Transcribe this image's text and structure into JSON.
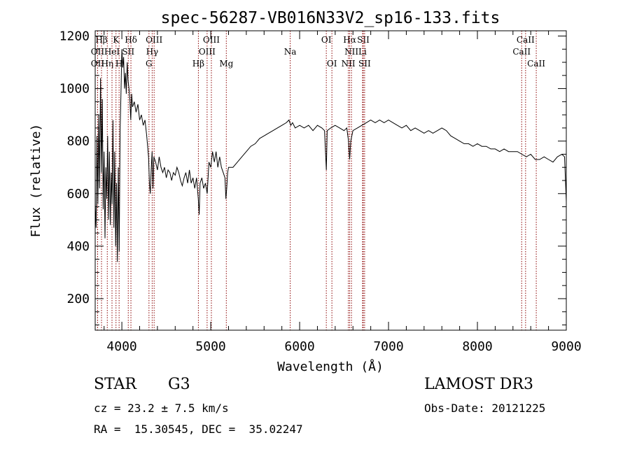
{
  "chart_data": {
    "type": "line",
    "title": "spec-56287-VB016N33V2_sp16-133.fits",
    "xlabel": "Wavelength (Å)",
    "ylabel": "Flux (relative)",
    "xlim": [
      3700,
      9000
    ],
    "ylim": [
      80,
      1220
    ],
    "x_ticks": [
      4000,
      5000,
      6000,
      7000,
      8000,
      9000
    ],
    "y_ticks": [
      200,
      400,
      600,
      800,
      1000,
      1200
    ],
    "grid": false,
    "line_color": "#000000",
    "marker_color": "#8b0000",
    "series": [
      {
        "name": "flux",
        "points": [
          [
            3700,
            560
          ],
          [
            3710,
            470
          ],
          [
            3720,
            820
          ],
          [
            3730,
            560
          ],
          [
            3740,
            900
          ],
          [
            3750,
            620
          ],
          [
            3760,
            1040
          ],
          [
            3770,
            680
          ],
          [
            3780,
            960
          ],
          [
            3790,
            540
          ],
          [
            3800,
            760
          ],
          [
            3810,
            430
          ],
          [
            3820,
            700
          ],
          [
            3830,
            580
          ],
          [
            3840,
            820
          ],
          [
            3850,
            500
          ],
          [
            3860,
            760
          ],
          [
            3870,
            480
          ],
          [
            3880,
            680
          ],
          [
            3890,
            560
          ],
          [
            3900,
            880
          ],
          [
            3910,
            470
          ],
          [
            3920,
            760
          ],
          [
            3930,
            400
          ],
          [
            3940,
            640
          ],
          [
            3950,
            340
          ],
          [
            3960,
            700
          ],
          [
            3970,
            380
          ],
          [
            3980,
            840
          ],
          [
            3990,
            980
          ],
          [
            4000,
            1150
          ],
          [
            4010,
            1080
          ],
          [
            4020,
            1120
          ],
          [
            4030,
            1000
          ],
          [
            4040,
            1060
          ],
          [
            4050,
            980
          ],
          [
            4060,
            1100
          ],
          [
            4070,
            1030
          ],
          [
            4080,
            1000
          ],
          [
            4090,
            960
          ],
          [
            4100,
            880
          ],
          [
            4110,
            980
          ],
          [
            4120,
            930
          ],
          [
            4140,
            950
          ],
          [
            4160,
            910
          ],
          [
            4180,
            940
          ],
          [
            4200,
            880
          ],
          [
            4220,
            900
          ],
          [
            4240,
            860
          ],
          [
            4260,
            880
          ],
          [
            4280,
            820
          ],
          [
            4300,
            740
          ],
          [
            4310,
            640
          ],
          [
            4320,
            600
          ],
          [
            4330,
            690
          ],
          [
            4340,
            760
          ],
          [
            4350,
            620
          ],
          [
            4360,
            740
          ],
          [
            4380,
            720
          ],
          [
            4400,
            690
          ],
          [
            4420,
            740
          ],
          [
            4440,
            700
          ],
          [
            4460,
            680
          ],
          [
            4480,
            700
          ],
          [
            4500,
            660
          ],
          [
            4520,
            690
          ],
          [
            4540,
            680
          ],
          [
            4560,
            650
          ],
          [
            4580,
            680
          ],
          [
            4600,
            670
          ],
          [
            4620,
            700
          ],
          [
            4640,
            680
          ],
          [
            4660,
            650
          ],
          [
            4680,
            630
          ],
          [
            4700,
            660
          ],
          [
            4720,
            680
          ],
          [
            4740,
            640
          ],
          [
            4760,
            690
          ],
          [
            4780,
            640
          ],
          [
            4800,
            660
          ],
          [
            4820,
            620
          ],
          [
            4840,
            660
          ],
          [
            4860,
            580
          ],
          [
            4870,
            520
          ],
          [
            4880,
            640
          ],
          [
            4900,
            660
          ],
          [
            4920,
            620
          ],
          [
            4940,
            640
          ],
          [
            4960,
            600
          ],
          [
            4980,
            720
          ],
          [
            5000,
            700
          ],
          [
            5020,
            760
          ],
          [
            5040,
            720
          ],
          [
            5060,
            760
          ],
          [
            5080,
            700
          ],
          [
            5100,
            740
          ],
          [
            5120,
            700
          ],
          [
            5140,
            680
          ],
          [
            5160,
            660
          ],
          [
            5170,
            580
          ],
          [
            5180,
            620
          ],
          [
            5190,
            680
          ],
          [
            5200,
            700
          ],
          [
            5250,
            700
          ],
          [
            5300,
            720
          ],
          [
            5350,
            740
          ],
          [
            5400,
            760
          ],
          [
            5450,
            780
          ],
          [
            5500,
            790
          ],
          [
            5550,
            810
          ],
          [
            5600,
            820
          ],
          [
            5650,
            830
          ],
          [
            5700,
            840
          ],
          [
            5750,
            850
          ],
          [
            5800,
            860
          ],
          [
            5850,
            870
          ],
          [
            5880,
            880
          ],
          [
            5900,
            860
          ],
          [
            5920,
            870
          ],
          [
            5950,
            850
          ],
          [
            6000,
            860
          ],
          [
            6050,
            850
          ],
          [
            6100,
            860
          ],
          [
            6150,
            840
          ],
          [
            6200,
            860
          ],
          [
            6250,
            850
          ],
          [
            6280,
            840
          ],
          [
            6300,
            690
          ],
          [
            6310,
            840
          ],
          [
            6350,
            850
          ],
          [
            6400,
            860
          ],
          [
            6450,
            850
          ],
          [
            6500,
            840
          ],
          [
            6530,
            850
          ],
          [
            6550,
            800
          ],
          [
            6563,
            730
          ],
          [
            6575,
            800
          ],
          [
            6600,
            840
          ],
          [
            6650,
            850
          ],
          [
            6700,
            860
          ],
          [
            6750,
            870
          ],
          [
            6800,
            880
          ],
          [
            6850,
            870
          ],
          [
            6900,
            880
          ],
          [
            6950,
            870
          ],
          [
            7000,
            880
          ],
          [
            7050,
            870
          ],
          [
            7100,
            860
          ],
          [
            7150,
            850
          ],
          [
            7200,
            860
          ],
          [
            7250,
            840
          ],
          [
            7300,
            850
          ],
          [
            7350,
            840
          ],
          [
            7400,
            830
          ],
          [
            7450,
            840
          ],
          [
            7500,
            830
          ],
          [
            7550,
            840
          ],
          [
            7600,
            850
          ],
          [
            7650,
            840
          ],
          [
            7700,
            820
          ],
          [
            7750,
            810
          ],
          [
            7800,
            800
          ],
          [
            7850,
            790
          ],
          [
            7900,
            790
          ],
          [
            7950,
            780
          ],
          [
            8000,
            790
          ],
          [
            8050,
            780
          ],
          [
            8100,
            780
          ],
          [
            8150,
            770
          ],
          [
            8200,
            770
          ],
          [
            8250,
            760
          ],
          [
            8300,
            770
          ],
          [
            8350,
            760
          ],
          [
            8400,
            760
          ],
          [
            8450,
            760
          ],
          [
            8500,
            750
          ],
          [
            8550,
            740
          ],
          [
            8600,
            750
          ],
          [
            8650,
            730
          ],
          [
            8700,
            730
          ],
          [
            8750,
            740
          ],
          [
            8800,
            730
          ],
          [
            8850,
            720
          ],
          [
            8900,
            740
          ],
          [
            8950,
            750
          ],
          [
            8980,
            740
          ],
          [
            9000,
            570
          ]
        ]
      }
    ],
    "line_markers": [
      {
        "label": "Hβ",
        "wavelength": 3771,
        "row": 1
      },
      {
        "label": "OII",
        "wavelength": 3727,
        "row": 2
      },
      {
        "label": "OII",
        "wavelength": 3727,
        "row": 3
      },
      {
        "label": "Hη",
        "wavelength": 3836,
        "row": 3
      },
      {
        "label": "HeI",
        "wavelength": 3889,
        "row": 2
      },
      {
        "label": "K",
        "wavelength": 3934,
        "row": 1
      },
      {
        "label": "H",
        "wavelength": 3969,
        "row": 3
      },
      {
        "label": "SII",
        "wavelength": 4072,
        "row": 2
      },
      {
        "label": "Hδ",
        "wavelength": 4102,
        "row": 1
      },
      {
        "label": "OIII",
        "wavelength": 4363,
        "row": 1
      },
      {
        "label": "Hγ",
        "wavelength": 4341,
        "row": 2
      },
      {
        "label": "G",
        "wavelength": 4305,
        "row": 3
      },
      {
        "label": "Hβ",
        "wavelength": 4861,
        "row": 3
      },
      {
        "label": "OIII",
        "wavelength": 5007,
        "row": 1
      },
      {
        "label": "OIII",
        "wavelength": 4959,
        "row": 2
      },
      {
        "label": "Mg",
        "wavelength": 5175,
        "row": 3
      },
      {
        "label": "Na",
        "wavelength": 5894,
        "row": 2
      },
      {
        "label": "OI",
        "wavelength": 6300,
        "row": 1
      },
      {
        "label": "OI",
        "wavelength": 6363,
        "row": 3
      },
      {
        "label": "Hα",
        "wavelength": 6563,
        "row": 1
      },
      {
        "label": "NII",
        "wavelength": 6583,
        "row": 2
      },
      {
        "label": "NII",
        "wavelength": 6548,
        "row": 3
      },
      {
        "label": "SII",
        "wavelength": 6716,
        "row": 1
      },
      {
        "label": "Li",
        "wavelength": 6708,
        "row": 2
      },
      {
        "label": "SII",
        "wavelength": 6731,
        "row": 3
      },
      {
        "label": "CaII",
        "wavelength": 8542,
        "row": 1
      },
      {
        "label": "CaII",
        "wavelength": 8498,
        "row": 2
      },
      {
        "label": "CaII",
        "wavelength": 8662,
        "row": 3
      }
    ]
  },
  "info": {
    "object_class": "STAR",
    "subclass": "G3",
    "redshift_line": "cz = 23.2 ± 7.5 km/s",
    "coords_line": "RA =  15.30545, DEC =  35.02247",
    "survey": "LAMOST DR3",
    "obs_date_line": "Obs-Date: 20121225"
  }
}
